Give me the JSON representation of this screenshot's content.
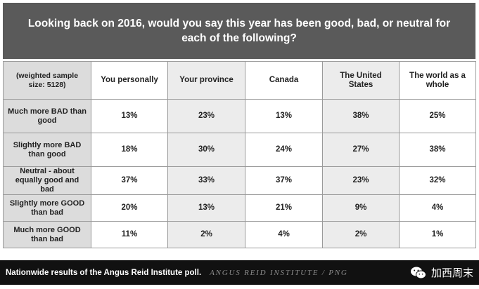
{
  "header": {
    "title": "Looking back on 2016, would you say this year has been good, bad, or neutral for each of the following?"
  },
  "table": {
    "corner_label": "(weighted sample size: 5128)",
    "columns": [
      "You personally",
      "Your province",
      "Canada",
      "The United States",
      "The world as a whole"
    ],
    "rows": [
      {
        "label": "Much more BAD than good",
        "values": [
          "13%",
          "23%",
          "13%",
          "38%",
          "25%"
        ]
      },
      {
        "label": "Slightly more BAD than good",
        "values": [
          "18%",
          "30%",
          "24%",
          "27%",
          "38%"
        ]
      },
      {
        "label": "Neutral - about equally good and bad",
        "values": [
          "37%",
          "33%",
          "37%",
          "23%",
          "32%"
        ]
      },
      {
        "label": "Slightly more GOOD than bad",
        "values": [
          "20%",
          "13%",
          "21%",
          "9%",
          "4%"
        ]
      },
      {
        "label": "Much more GOOD than bad",
        "values": [
          "11%",
          "2%",
          "4%",
          "2%",
          "1%"
        ]
      }
    ]
  },
  "caption": {
    "text": "Nationwide results of the Angus Reid Institute poll.",
    "credit": "ANGUS REID INSTITUTE / PNG"
  },
  "watermark": {
    "icon": "wechat-icon",
    "text": "加西周末"
  },
  "colors": {
    "header_bg": "#5a5a5a",
    "row_label_bg": "#dcdcdc",
    "alt_column_bg": "#ececec",
    "caption_bg": "#111111"
  }
}
